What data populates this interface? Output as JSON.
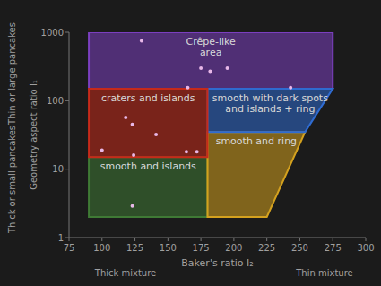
{
  "chart_data": {
    "type": "scatter",
    "x_label": "Baker's ratio I₂",
    "y_label": "Geometry aspect ratio I₁",
    "annotations": {
      "y_high": "Thin or large pancakes",
      "y_low": "Thick or small pancakes",
      "x_low": "Thick mixture",
      "x_high": "Thin mixture"
    },
    "xlim": [
      75,
      300
    ],
    "ylim": [
      1,
      1000
    ],
    "xticks": [
      75,
      100,
      125,
      150,
      175,
      200,
      225,
      250,
      275,
      300
    ],
    "yticks": [
      1,
      10,
      100,
      1000
    ],
    "log": "y",
    "grid": false,
    "regions": [
      {
        "label": [
          "Crêpe-like",
          "area"
        ],
        "color": "#7b3fbf",
        "points": [
          [
            90,
            150
          ],
          [
            275,
            150
          ],
          [
            275,
            1000
          ],
          [
            90,
            1000
          ]
        ]
      },
      {
        "label": [
          "smooth and islands"
        ],
        "color": "#3f7a35",
        "points": [
          [
            90,
            2
          ],
          [
            180,
            2
          ],
          [
            180,
            15
          ],
          [
            90,
            15
          ]
        ]
      },
      {
        "label": [
          "smooth and ring"
        ],
        "color": "#d4a11e",
        "points": [
          [
            180,
            2
          ],
          [
            225,
            2
          ],
          [
            254,
            35
          ],
          [
            180,
            35
          ]
        ]
      },
      {
        "label": [
          "smooth with dark spots",
          "and islands + ring"
        ],
        "color": "#2f6bd0",
        "points": [
          [
            180,
            35
          ],
          [
            254,
            35
          ],
          [
            275,
            150
          ],
          [
            180,
            150
          ]
        ]
      },
      {
        "label": [
          "craters and islands"
        ],
        "color": "#c62a1a",
        "points": [
          [
            90,
            15
          ],
          [
            180,
            15
          ],
          [
            180,
            150
          ],
          [
            90,
            150
          ]
        ]
      }
    ],
    "x": [
      130,
      175,
      182,
      195,
      165,
      243,
      118,
      123,
      141,
      100,
      124,
      164,
      172,
      123
    ],
    "values": [
      750,
      300,
      270,
      300,
      155,
      155,
      57,
      45,
      32,
      19,
      16,
      18,
      18,
      2.9
    ],
    "color": "#e8b8e8",
    "marker": "circle"
  }
}
